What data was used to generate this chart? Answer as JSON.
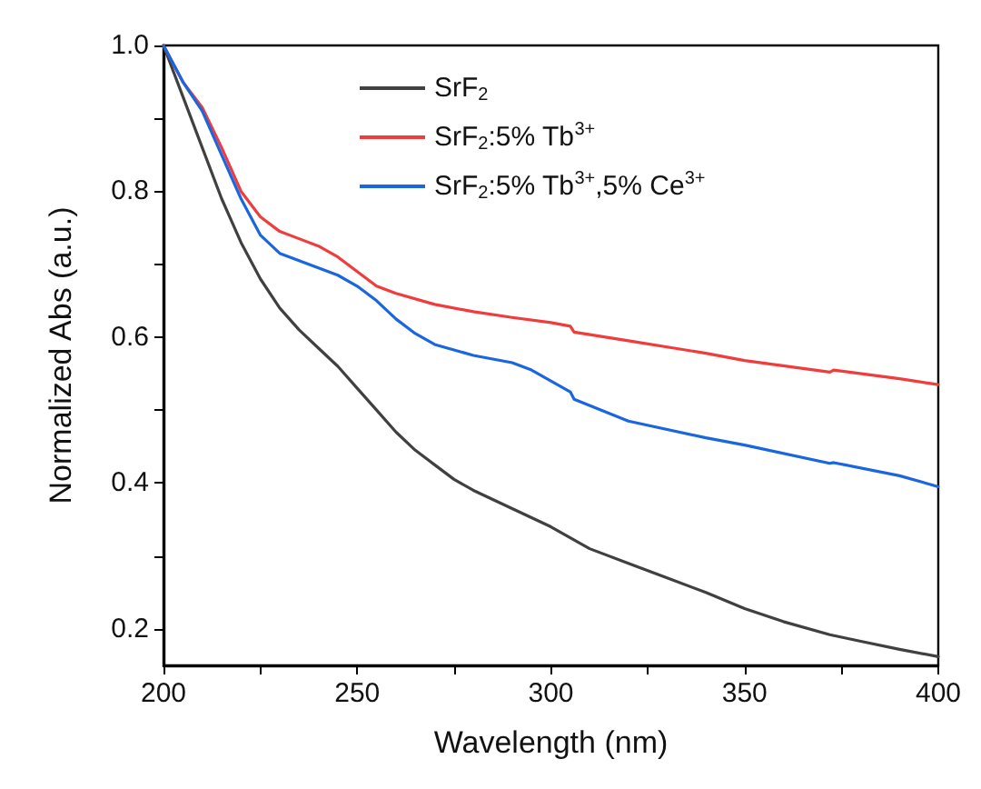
{
  "chart_data": {
    "type": "line",
    "xlabel": "Wavelength (nm)",
    "ylabel": "Normalized Abs (a.u.)",
    "xlim": [
      200,
      400
    ],
    "ylim": [
      0.15,
      1.0
    ],
    "xticks": [
      200,
      {
        "value": 225,
        "label": null
      },
      250,
      {
        "value": 275,
        "label": null
      },
      300,
      {
        "value": 325,
        "label": null
      },
      350,
      {
        "value": 375,
        "label": null
      },
      400
    ],
    "yticks": [
      0.2,
      {
        "value": 0.3,
        "label": null
      },
      0.4,
      {
        "value": 0.5,
        "label": null
      },
      0.6,
      {
        "value": 0.7,
        "label": null
      },
      0.8,
      {
        "value": 0.9,
        "label": null
      },
      {
        "value": 1.0,
        "label": "1.0"
      }
    ],
    "grid": false,
    "legend": "top left",
    "marker": "none",
    "line_style": "solid",
    "series": [
      {
        "name": "SrF$_{2}$",
        "color": "#404040",
        "x": [
          200,
          205,
          210,
          215,
          220,
          225,
          230,
          235,
          240,
          245,
          250,
          255,
          260,
          265,
          270,
          275,
          280,
          290,
          300,
          305,
          310,
          320,
          330,
          340,
          350,
          360,
          372,
          380,
          390,
          400
        ],
        "values": [
          1.0,
          0.93,
          0.86,
          0.79,
          0.73,
          0.68,
          0.64,
          0.61,
          0.585,
          0.56,
          0.53,
          0.5,
          0.47,
          0.445,
          0.425,
          0.405,
          0.39,
          0.365,
          0.34,
          0.325,
          0.31,
          0.29,
          0.27,
          0.25,
          0.228,
          0.21,
          0.192,
          0.183,
          0.172,
          0.162
        ]
      },
      {
        "name": "SrF$_{2}$:5% Tb$^{3+}$",
        "color": "#f03c3c",
        "x": [
          200,
          205,
          210,
          215,
          220,
          225,
          230,
          235,
          240,
          245,
          250,
          255,
          260,
          270,
          280,
          290,
          300,
          305,
          306,
          320,
          340,
          350,
          372,
          373,
          390,
          400
        ],
        "values": [
          1.0,
          0.95,
          0.915,
          0.86,
          0.8,
          0.765,
          0.745,
          0.735,
          0.725,
          0.71,
          0.69,
          0.67,
          0.66,
          0.645,
          0.635,
          0.627,
          0.62,
          0.615,
          0.607,
          0.595,
          0.578,
          0.568,
          0.552,
          0.555,
          0.543,
          0.535
        ]
      },
      {
        "name": "SrF$_{2}$:5% Tb$^{3+}$,5% Ce$^{3+}$",
        "color": "#1a66e0",
        "x": [
          200,
          205,
          210,
          215,
          220,
          225,
          230,
          235,
          240,
          245,
          250,
          255,
          260,
          265,
          270,
          280,
          290,
          295,
          300,
          305,
          306,
          320,
          340,
          350,
          372,
          373,
          390,
          400
        ],
        "values": [
          1.0,
          0.95,
          0.91,
          0.85,
          0.79,
          0.74,
          0.715,
          0.705,
          0.695,
          0.685,
          0.67,
          0.65,
          0.625,
          0.605,
          0.59,
          0.575,
          0.565,
          0.555,
          0.54,
          0.525,
          0.515,
          0.485,
          0.462,
          0.452,
          0.427,
          0.428,
          0.41,
          0.395
        ]
      }
    ]
  }
}
